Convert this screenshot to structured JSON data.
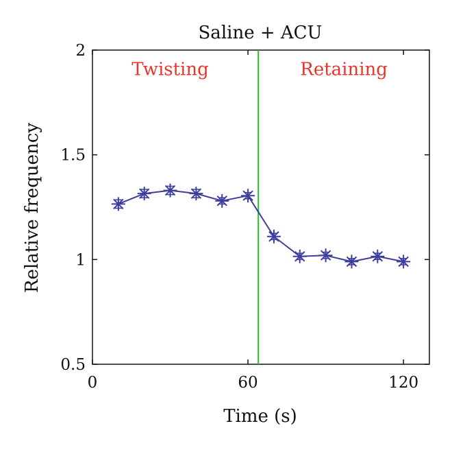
{
  "chart_data": {
    "type": "line",
    "title": "Saline + ACU",
    "xlabel": "Time (s)",
    "ylabel": "Relative frequency",
    "xlim": [
      0,
      130
    ],
    "ylim": [
      0.5,
      2
    ],
    "xticks": [
      0,
      60,
      120
    ],
    "yticks": [
      0.5,
      1,
      1.5,
      2
    ],
    "ytick_labels": [
      "0.5",
      "1",
      "1.5",
      "2"
    ],
    "grid": false,
    "series": [
      {
        "marker": "asterisk",
        "color": "#3d3d9e",
        "x": [
          10,
          20,
          30,
          40,
          50,
          60,
          70,
          80,
          90,
          100,
          110,
          120
        ],
        "y": [
          1.265,
          1.315,
          1.33,
          1.315,
          1.28,
          1.305,
          1.11,
          1.015,
          1.02,
          0.99,
          1.015,
          0.99
        ],
        "error": [
          0.02,
          0.02,
          0.02,
          0.02,
          0.015,
          0.015,
          0.015,
          0.015,
          0.015,
          0.015,
          0.015,
          0.015
        ]
      }
    ],
    "vline": {
      "x": 64,
      "color": "#2db52d"
    },
    "annotations": [
      {
        "text": "Twisting",
        "x": 30,
        "y": 1.88,
        "color": "#e8352b"
      },
      {
        "text": "Retaining",
        "x": 97,
        "y": 1.88,
        "color": "#e8352b"
      }
    ]
  }
}
